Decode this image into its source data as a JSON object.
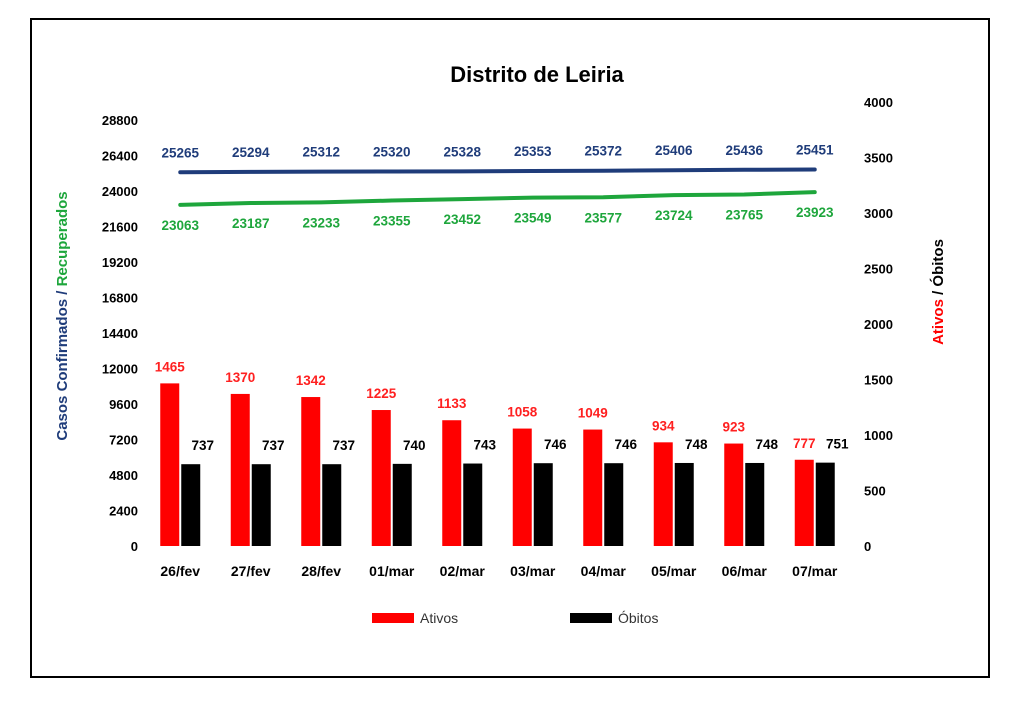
{
  "chart_data": {
    "type": "bar",
    "title": "Distrito de Leiria",
    "categories": [
      "26/fev",
      "27/fev",
      "28/fev",
      "01/mar",
      "02/mar",
      "03/mar",
      "04/mar",
      "05/mar",
      "06/mar",
      "07/mar"
    ],
    "left_axis": {
      "title_parts": [
        {
          "text": "Casos Confirmados",
          "color": "#1f3c7a"
        },
        {
          "text": " / ",
          "color": "#1f3c7a"
        },
        {
          "text": "Recuperados",
          "color": "#1ea63c"
        }
      ],
      "ylim": [
        0,
        28800
      ],
      "ticks": [
        "0",
        "2400",
        "4800",
        "7200",
        "9600",
        "12000",
        "14400",
        "16800",
        "19200",
        "21600",
        "24000",
        "26400",
        "28800"
      ]
    },
    "right_axis": {
      "title_parts": [
        {
          "text": "Ativos",
          "color": "#ff0000"
        },
        {
          "text": " / Óbitos",
          "color": "#000000"
        }
      ],
      "ylim": [
        0,
        4000
      ],
      "ticks": [
        "0",
        "500",
        "1000",
        "1500",
        "2000",
        "2500",
        "3000",
        "3500",
        "4000"
      ]
    },
    "series": [
      {
        "name": "Casos Confirmados",
        "kind": "line",
        "axis": "left",
        "color": "#1f3c7a",
        "values": [
          25265,
          25294,
          25312,
          25320,
          25328,
          25353,
          25372,
          25406,
          25436,
          25451
        ]
      },
      {
        "name": "Recuperados",
        "kind": "line",
        "axis": "left",
        "color": "#1ea63c",
        "values": [
          23063,
          23187,
          23233,
          23355,
          23452,
          23549,
          23577,
          23724,
          23765,
          23923
        ]
      },
      {
        "name": "Ativos",
        "kind": "bar",
        "axis": "right",
        "color": "#ff0000",
        "label_color": "#ff2020",
        "values": [
          1465,
          1370,
          1342,
          1225,
          1133,
          1058,
          1049,
          934,
          923,
          777
        ]
      },
      {
        "name": "Óbitos",
        "kind": "bar",
        "axis": "right",
        "color": "#000000",
        "label_color": "#000000",
        "values": [
          737,
          737,
          737,
          740,
          743,
          746,
          746,
          748,
          748,
          751
        ]
      }
    ],
    "legend": {
      "position": "bottom",
      "items": [
        {
          "label": "Ativos",
          "color": "#ff0000"
        },
        {
          "label": "Óbitos",
          "color": "#000000"
        }
      ]
    },
    "grid": false
  }
}
